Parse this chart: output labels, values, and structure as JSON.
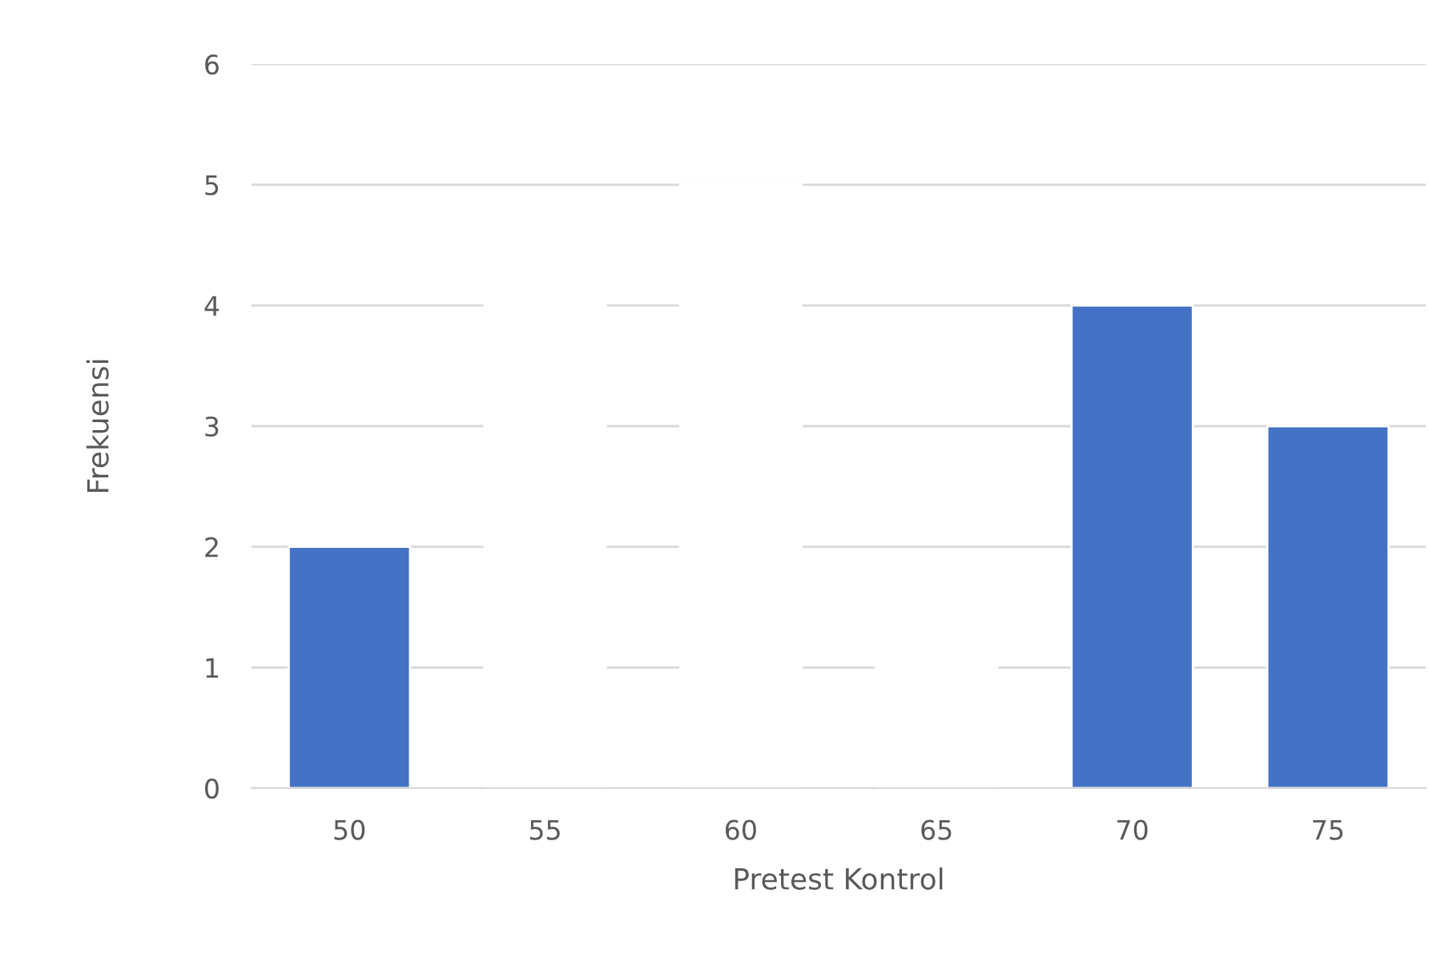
{
  "chart_data": {
    "type": "bar",
    "xlabel": "Pretest Kontrol",
    "ylabel": "Frekuensi",
    "categories": [
      "50",
      "55",
      "60",
      "65",
      "70",
      "75"
    ],
    "values": [
      2,
      4,
      5,
      1,
      4,
      3
    ],
    "colors": [
      "#4472c4",
      "#ffffff",
      "#ffffff",
      "#ffffff",
      "#4472c4",
      "#4472c4"
    ],
    "ylim": [
      0,
      6
    ],
    "yticks": [
      0,
      1,
      2,
      3,
      4,
      5,
      6
    ],
    "grid": "y",
    "legend": false
  }
}
